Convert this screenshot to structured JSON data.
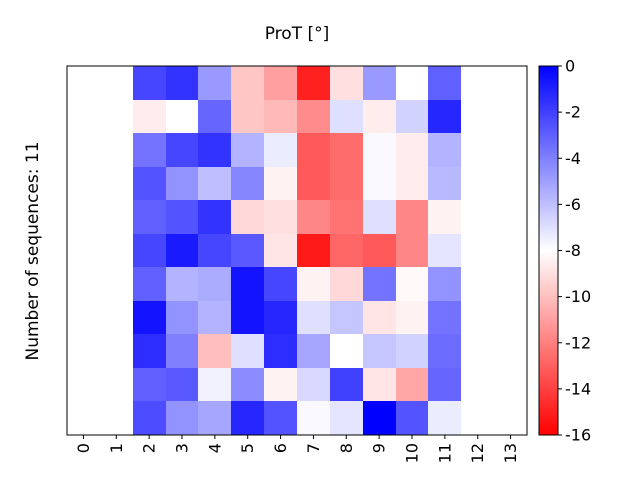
{
  "chart_data": {
    "type": "heatmap",
    "title": "ProT [°]",
    "xlabel": "",
    "ylabel": "Number of sequences: 11",
    "x_categories": [
      "0",
      "1",
      "2",
      "3",
      "4",
      "5",
      "6",
      "7",
      "8",
      "9",
      "10",
      "11",
      "12",
      "13"
    ],
    "row_count": 11,
    "colorbar": {
      "min": -16,
      "max": 0,
      "ticks": [
        "0",
        "-2",
        "-4",
        "-6",
        "-8",
        "-10",
        "-12",
        "-14",
        "-16"
      ],
      "colors": {
        "low": "#ff0000",
        "mid": "#ffffff",
        "high": "#0000ff"
      }
    },
    "grid": false,
    "colorbar_position": "right",
    "values": [
      [
        null,
        null,
        -2.2,
        -1.6,
        -4.8,
        -9.8,
        -11.0,
        -15.0,
        -9.0,
        -4.8,
        -8.0,
        -3.0,
        null,
        null
      ],
      [
        null,
        null,
        -8.6,
        -8.0,
        -3.2,
        -9.8,
        -10.2,
        -11.6,
        -7.0,
        -8.6,
        -6.6,
        -1.2,
        null,
        null
      ],
      [
        null,
        null,
        -3.6,
        -2.2,
        -1.6,
        -5.6,
        -7.4,
        -13.2,
        -12.6,
        -7.8,
        -8.6,
        -5.6,
        null,
        null
      ],
      [
        null,
        null,
        -2.6,
        -4.6,
        -6.0,
        -4.2,
        -8.4,
        -13.2,
        -12.6,
        -7.8,
        -8.6,
        -5.8,
        null,
        null
      ],
      [
        null,
        null,
        -3.0,
        -2.6,
        -1.6,
        -9.2,
        -9.0,
        -11.8,
        -12.4,
        -7.0,
        -11.8,
        -8.4,
        null,
        null
      ],
      [
        null,
        null,
        -2.2,
        -0.8,
        -2.2,
        -2.8,
        -8.8,
        -15.2,
        -12.8,
        -13.2,
        -11.8,
        -7.2,
        null,
        null
      ],
      [
        null,
        null,
        -3.0,
        -5.6,
        -5.4,
        -0.6,
        -2.2,
        -8.4,
        -9.2,
        -3.6,
        -8.2,
        -4.6,
        null,
        null
      ],
      [
        null,
        null,
        -0.6,
        -4.6,
        -5.6,
        -0.6,
        -1.2,
        -7.0,
        -6.2,
        -8.8,
        -8.4,
        -3.6,
        null,
        null
      ],
      [
        null,
        null,
        -1.4,
        -4.0,
        -10.0,
        -7.0,
        -1.4,
        -5.2,
        -8.0,
        -6.2,
        -6.6,
        -3.4,
        null,
        null
      ],
      [
        null,
        null,
        -3.0,
        -2.8,
        -7.6,
        -4.4,
        -8.4,
        -6.8,
        -2.0,
        -8.8,
        -10.8,
        -3.2,
        null,
        null
      ],
      [
        null,
        null,
        -2.4,
        -4.6,
        -5.2,
        -1.2,
        -2.6,
        -7.8,
        -7.2,
        0.0,
        -2.6,
        -7.4,
        null,
        null
      ]
    ]
  }
}
